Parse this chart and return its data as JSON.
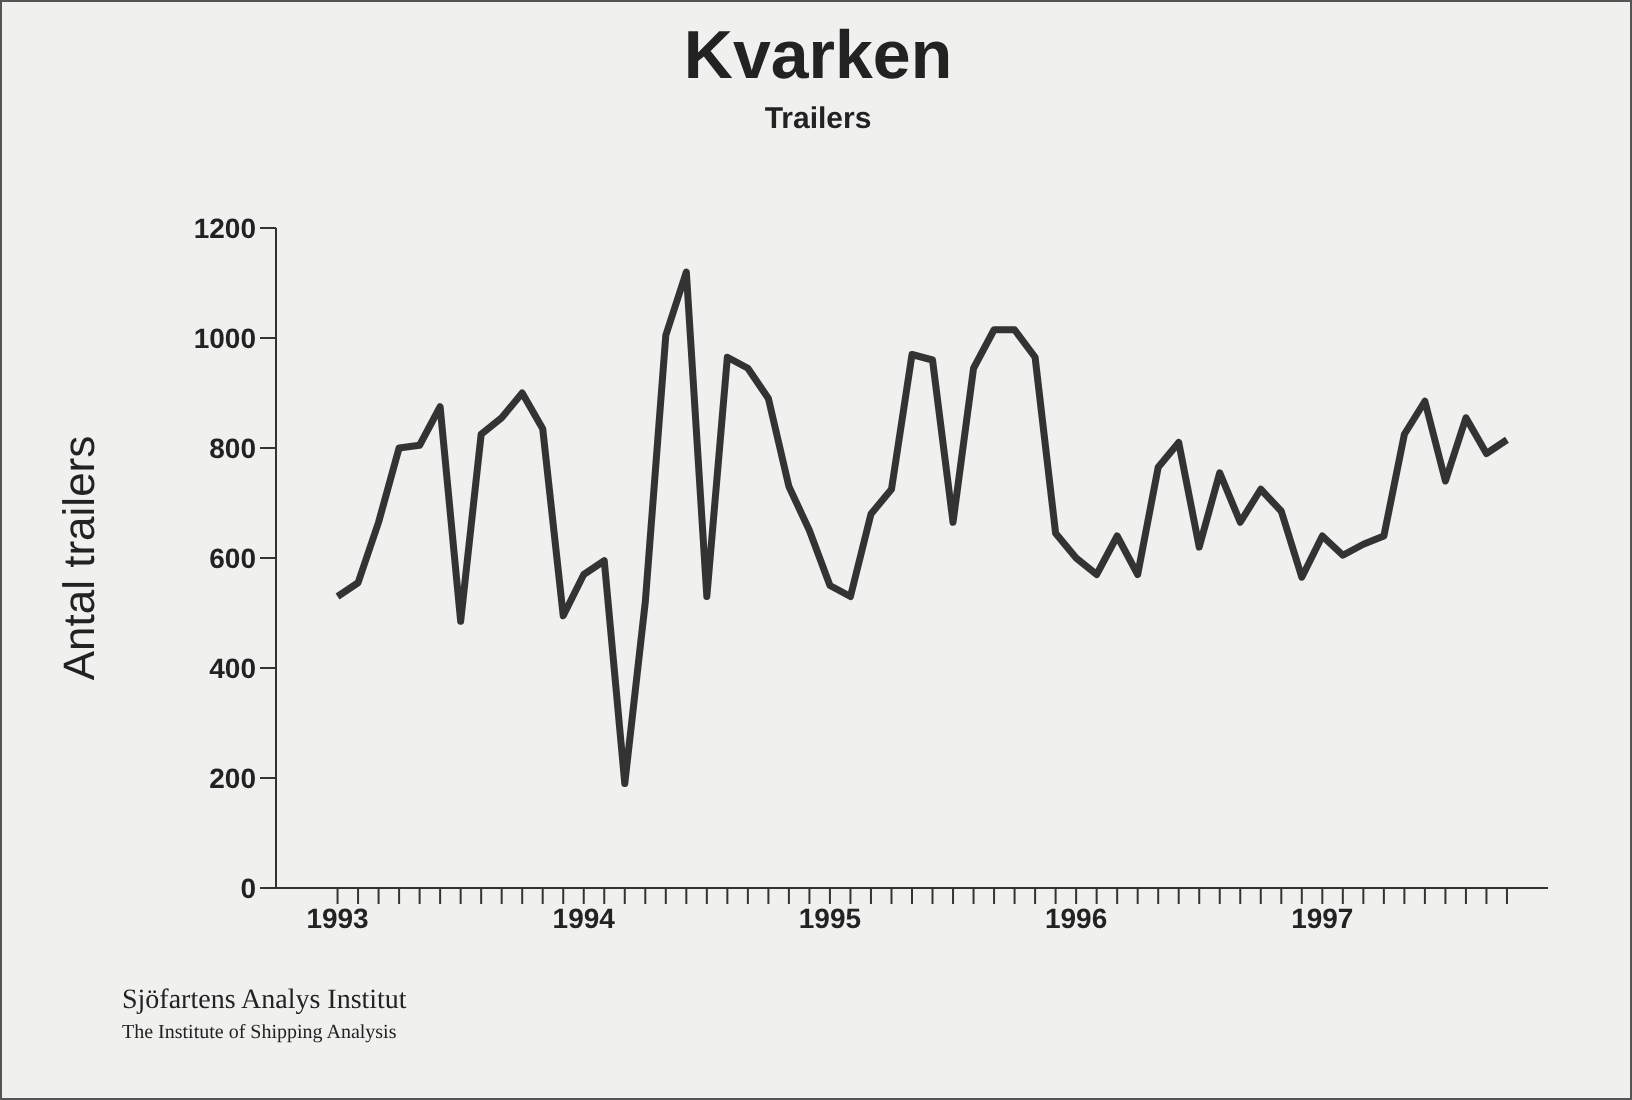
{
  "chart_data": {
    "type": "line",
    "title": "Kvarken",
    "subtitle": "Trailers",
    "ylabel": "Antal trailers",
    "annotations": [
      "Sjöfartens Analys Institut",
      "The Institute of Shipping Analysis"
    ],
    "x": [
      "1993-01",
      "1993-02",
      "1993-03",
      "1993-04",
      "1993-05",
      "1993-06",
      "1993-07",
      "1993-08",
      "1993-09",
      "1993-10",
      "1993-11",
      "1993-12",
      "1994-01",
      "1994-02",
      "1994-03",
      "1994-04",
      "1994-05",
      "1994-06",
      "1994-07",
      "1994-08",
      "1994-09",
      "1994-10",
      "1994-11",
      "1994-12",
      "1995-01",
      "1995-02",
      "1995-03",
      "1995-04",
      "1995-05",
      "1995-06",
      "1995-07",
      "1995-08",
      "1995-09",
      "1995-10",
      "1995-11",
      "1995-12",
      "1996-01",
      "1996-02",
      "1996-03",
      "1996-04",
      "1996-05",
      "1996-06",
      "1996-07",
      "1996-08",
      "1996-09",
      "1996-10",
      "1996-11",
      "1996-12",
      "1997-01",
      "1997-02",
      "1997-03",
      "1997-04",
      "1997-05",
      "1997-06",
      "1997-07",
      "1997-08",
      "1997-09",
      "1997-10"
    ],
    "series": [
      {
        "color": "#333333",
        "values": [
          530,
          555,
          665,
          800,
          805,
          875,
          485,
          825,
          855,
          900,
          835,
          495,
          570,
          595,
          190,
          520,
          1005,
          1120,
          530,
          965,
          945,
          890,
          730,
          650,
          550,
          530,
          680,
          725,
          970,
          960,
          665,
          945,
          1015,
          1015,
          965,
          645,
          600,
          570,
          640,
          570,
          765,
          810,
          620,
          755,
          665,
          725,
          685,
          565,
          640,
          605,
          625,
          640,
          825,
          885,
          740,
          855,
          790,
          815
        ]
      }
    ],
    "xlim": [
      "1992-10",
      "1997-12"
    ],
    "xticks": [
      {
        "value": "1993-01",
        "label": "1993"
      },
      {
        "value": "1993-02",
        "label": null
      },
      {
        "value": "1993-03",
        "label": null
      },
      {
        "value": "1993-04",
        "label": null
      },
      {
        "value": "1993-05",
        "label": null
      },
      {
        "value": "1993-06",
        "label": null
      },
      {
        "value": "1993-07",
        "label": null
      },
      {
        "value": "1993-08",
        "label": null
      },
      {
        "value": "1993-09",
        "label": null
      },
      {
        "value": "1993-10",
        "label": null
      },
      {
        "value": "1993-11",
        "label": null
      },
      {
        "value": "1993-12",
        "label": null
      },
      {
        "value": "1994-01",
        "label": "1994"
      },
      {
        "value": "1994-02",
        "label": null
      },
      {
        "value": "1994-03",
        "label": null
      },
      {
        "value": "1994-04",
        "label": null
      },
      {
        "value": "1994-05",
        "label": null
      },
      {
        "value": "1994-06",
        "label": null
      },
      {
        "value": "1994-07",
        "label": null
      },
      {
        "value": "1994-08",
        "label": null
      },
      {
        "value": "1994-09",
        "label": null
      },
      {
        "value": "1994-10",
        "label": null
      },
      {
        "value": "1994-11",
        "label": null
      },
      {
        "value": "1994-12",
        "label": null
      },
      {
        "value": "1995-01",
        "label": "1995"
      },
      {
        "value": "1995-02",
        "label": null
      },
      {
        "value": "1995-03",
        "label": null
      },
      {
        "value": "1995-04",
        "label": null
      },
      {
        "value": "1995-05",
        "label": null
      },
      {
        "value": "1995-06",
        "label": null
      },
      {
        "value": "1995-07",
        "label": null
      },
      {
        "value": "1995-08",
        "label": null
      },
      {
        "value": "1995-09",
        "label": null
      },
      {
        "value": "1995-10",
        "label": null
      },
      {
        "value": "1995-11",
        "label": null
      },
      {
        "value": "1995-12",
        "label": null
      },
      {
        "value": "1996-01",
        "label": "1996"
      },
      {
        "value": "1996-02",
        "label": null
      },
      {
        "value": "1996-03",
        "label": null
      },
      {
        "value": "1996-04",
        "label": null
      },
      {
        "value": "1996-05",
        "label": null
      },
      {
        "value": "1996-06",
        "label": null
      },
      {
        "value": "1996-07",
        "label": null
      },
      {
        "value": "1996-08",
        "label": null
      },
      {
        "value": "1996-09",
        "label": null
      },
      {
        "value": "1996-10",
        "label": null
      },
      {
        "value": "1996-11",
        "label": null
      },
      {
        "value": "1996-12",
        "label": null
      },
      {
        "value": "1997-01",
        "label": "1997"
      },
      {
        "value": "1997-02",
        "label": null
      },
      {
        "value": "1997-03",
        "label": null
      },
      {
        "value": "1997-04",
        "label": null
      },
      {
        "value": "1997-05",
        "label": null
      },
      {
        "value": "1997-06",
        "label": null
      },
      {
        "value": "1997-07",
        "label": null
      },
      {
        "value": "1997-08",
        "label": null
      },
      {
        "value": "1997-09",
        "label": null
      },
      {
        "value": "1997-10",
        "label": null
      }
    ],
    "ylim": [
      0,
      1200
    ],
    "yticks": [
      0,
      200,
      400,
      600,
      800,
      1000,
      1200
    ],
    "line_style": "solid"
  }
}
